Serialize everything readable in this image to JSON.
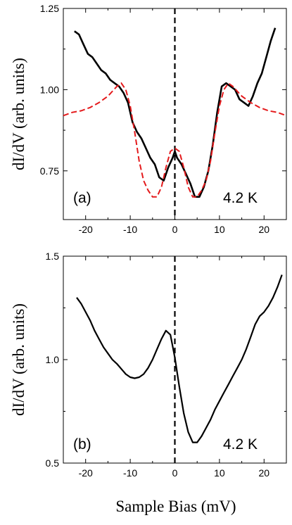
{
  "figure": {
    "xlabel": "Sample Bias (mV)"
  },
  "colors": {
    "data": "#000000",
    "fit": "#e41a1c",
    "zero_line": "#000000"
  },
  "chart_data": [
    {
      "type": "line",
      "panel_label": "(a)",
      "temperature_label": "4.2 K",
      "xlabel": "",
      "ylabel": "dI/dV (arb. units)",
      "xlim": [
        -25,
        25
      ],
      "ylim": [
        0.6,
        1.25
      ],
      "xticks": [
        -20,
        -10,
        0,
        10,
        20
      ],
      "yticks": [
        0.75,
        1.0,
        1.25
      ],
      "ytick_labels": [
        "0.75",
        "1.00",
        "1.25"
      ],
      "zero_line_x": 0,
      "series": [
        {
          "style": "solid",
          "x": [
            -22.5,
            -21.5,
            -20.5,
            -19.5,
            -18.5,
            -17.5,
            -16.5,
            -15.5,
            -14.5,
            -13.5,
            -12.5,
            -11.5,
            -10.5,
            -9.5,
            -8.5,
            -7.5,
            -6.5,
            -5.5,
            -4.5,
            -3.5,
            -2.5,
            -1.5,
            -0.5,
            0.0,
            0.5,
            1.5,
            2.5,
            3.5,
            4.5,
            5.5,
            6.5,
            7.5,
            8.5,
            9.5,
            10.5,
            11.5,
            12.5,
            13.5,
            14.5,
            15.5,
            16.5,
            17.5,
            18.5,
            19.5,
            20.5,
            21.5,
            22.5
          ],
          "y": [
            1.18,
            1.17,
            1.14,
            1.11,
            1.1,
            1.08,
            1.06,
            1.05,
            1.03,
            1.02,
            1.01,
            0.99,
            0.96,
            0.9,
            0.87,
            0.85,
            0.82,
            0.79,
            0.77,
            0.73,
            0.72,
            0.76,
            0.79,
            0.81,
            0.79,
            0.77,
            0.74,
            0.71,
            0.67,
            0.67,
            0.7,
            0.75,
            0.83,
            0.93,
            1.01,
            1.02,
            1.01,
            1.0,
            0.97,
            0.96,
            0.95,
            0.98,
            1.02,
            1.05,
            1.1,
            1.15,
            1.19
          ]
        },
        {
          "style": "dashed",
          "x": [
            -25,
            -23,
            -21,
            -19,
            -17,
            -15,
            -13,
            -12,
            -11,
            -10,
            -9,
            -8,
            -7,
            -6,
            -5,
            -4,
            -3,
            -2,
            -1,
            0,
            1,
            2,
            3,
            4,
            5,
            6,
            7,
            8,
            9,
            10,
            11,
            12,
            13,
            15,
            17,
            19,
            21,
            23,
            25
          ],
          "y": [
            0.92,
            0.93,
            0.935,
            0.945,
            0.96,
            0.98,
            1.01,
            1.02,
            1.0,
            0.95,
            0.87,
            0.78,
            0.72,
            0.69,
            0.67,
            0.67,
            0.7,
            0.76,
            0.81,
            0.82,
            0.81,
            0.76,
            0.7,
            0.67,
            0.67,
            0.69,
            0.72,
            0.78,
            0.87,
            0.95,
            1.0,
            1.02,
            1.01,
            0.98,
            0.96,
            0.945,
            0.935,
            0.93,
            0.92
          ]
        }
      ]
    },
    {
      "type": "line",
      "panel_label": "(b)",
      "temperature_label": "4.2 K",
      "xlabel": "",
      "ylabel": "dI/dV (arb. units)",
      "xlim": [
        -25,
        25
      ],
      "ylim": [
        0.5,
        1.5
      ],
      "xticks": [
        -20,
        -10,
        0,
        10,
        20
      ],
      "yticks": [
        0.5,
        1.0,
        1.5
      ],
      "ytick_labels": [
        "0.5",
        "1.0",
        "1.5"
      ],
      "zero_line_x": 0,
      "series": [
        {
          "style": "solid",
          "x": [
            -22,
            -21,
            -20,
            -19,
            -18,
            -17,
            -16,
            -15,
            -14,
            -13,
            -12,
            -11,
            -10,
            -9,
            -8,
            -7,
            -6,
            -5,
            -4,
            -3,
            -2,
            -1,
            0,
            1,
            2,
            3,
            4,
            5,
            6,
            7,
            8,
            9,
            10,
            11,
            12,
            13,
            14,
            15,
            16,
            17,
            18,
            19,
            20,
            21,
            22,
            23,
            24
          ],
          "y": [
            1.3,
            1.27,
            1.23,
            1.19,
            1.14,
            1.1,
            1.06,
            1.03,
            1.0,
            0.98,
            0.955,
            0.93,
            0.915,
            0.91,
            0.915,
            0.93,
            0.96,
            1.0,
            1.05,
            1.1,
            1.14,
            1.12,
            1.01,
            0.87,
            0.74,
            0.65,
            0.6,
            0.6,
            0.63,
            0.67,
            0.71,
            0.76,
            0.8,
            0.84,
            0.88,
            0.92,
            0.96,
            1.0,
            1.05,
            1.11,
            1.17,
            1.21,
            1.23,
            1.26,
            1.3,
            1.35,
            1.41
          ]
        }
      ]
    }
  ]
}
